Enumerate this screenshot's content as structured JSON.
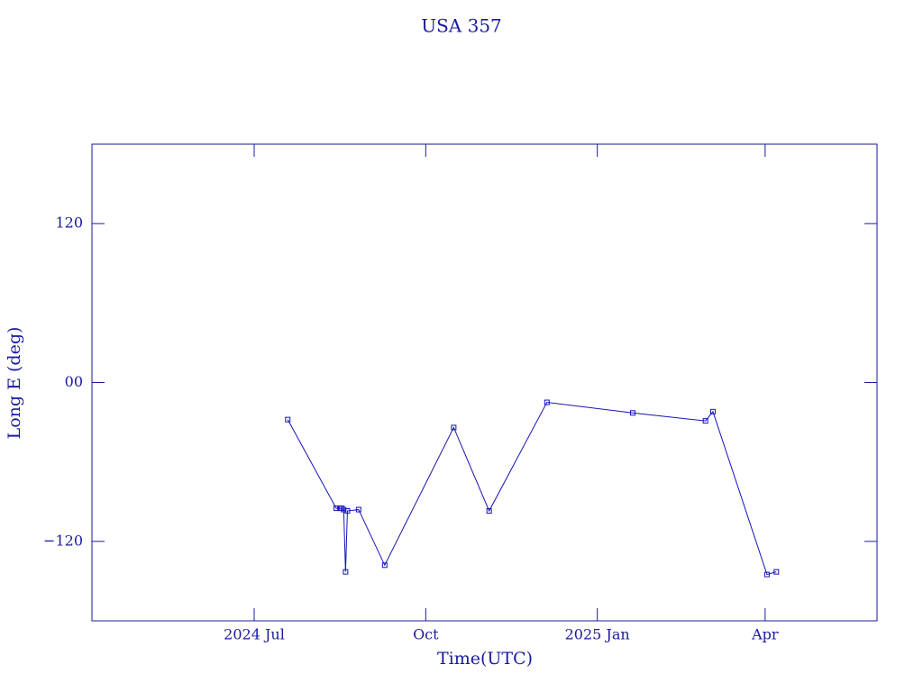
{
  "chart_data": {
    "type": "line",
    "title": "USA 357",
    "x_label": "Time(UTC)",
    "y_label": "Long E (deg)",
    "x": [
      "2024-07-19",
      "2024-08-14",
      "2024-08-16",
      "2024-08-17",
      "2024-08-18",
      "2024-08-19",
      "2024-08-20",
      "2024-08-26",
      "2024-09-09",
      "2024-10-16",
      "2024-11-04",
      "2024-12-05",
      "2025-01-20",
      "2025-02-28",
      "2025-03-04",
      "2025-04-02",
      "2025-04-07"
    ],
    "series": [
      {
        "name": "USA 357",
        "color": "#1414b4",
        "values": [
          -28,
          -95,
          -95,
          -95,
          -96,
          -143,
          -97,
          -96,
          -138,
          -34,
          -97,
          -15,
          -23,
          -29,
          -22,
          -145,
          -143
        ]
      }
    ],
    "xlim": [
      "2024-04-05",
      "2025-05-31"
    ],
    "xticks": [
      {
        "value": "2024-07-01",
        "label": "2024 Jul"
      },
      {
        "value": "2024-10-01",
        "label": "Oct"
      },
      {
        "value": "2025-01-01",
        "label": "2025 Jan"
      },
      {
        "value": "2025-04-01",
        "label": "Apr"
      }
    ],
    "ylim": [
      -180,
      180
    ],
    "yticks": [
      {
        "value": -120,
        "label": "−120"
      },
      {
        "value": 0,
        "label": "00"
      },
      120
    ],
    "grid": false
  }
}
